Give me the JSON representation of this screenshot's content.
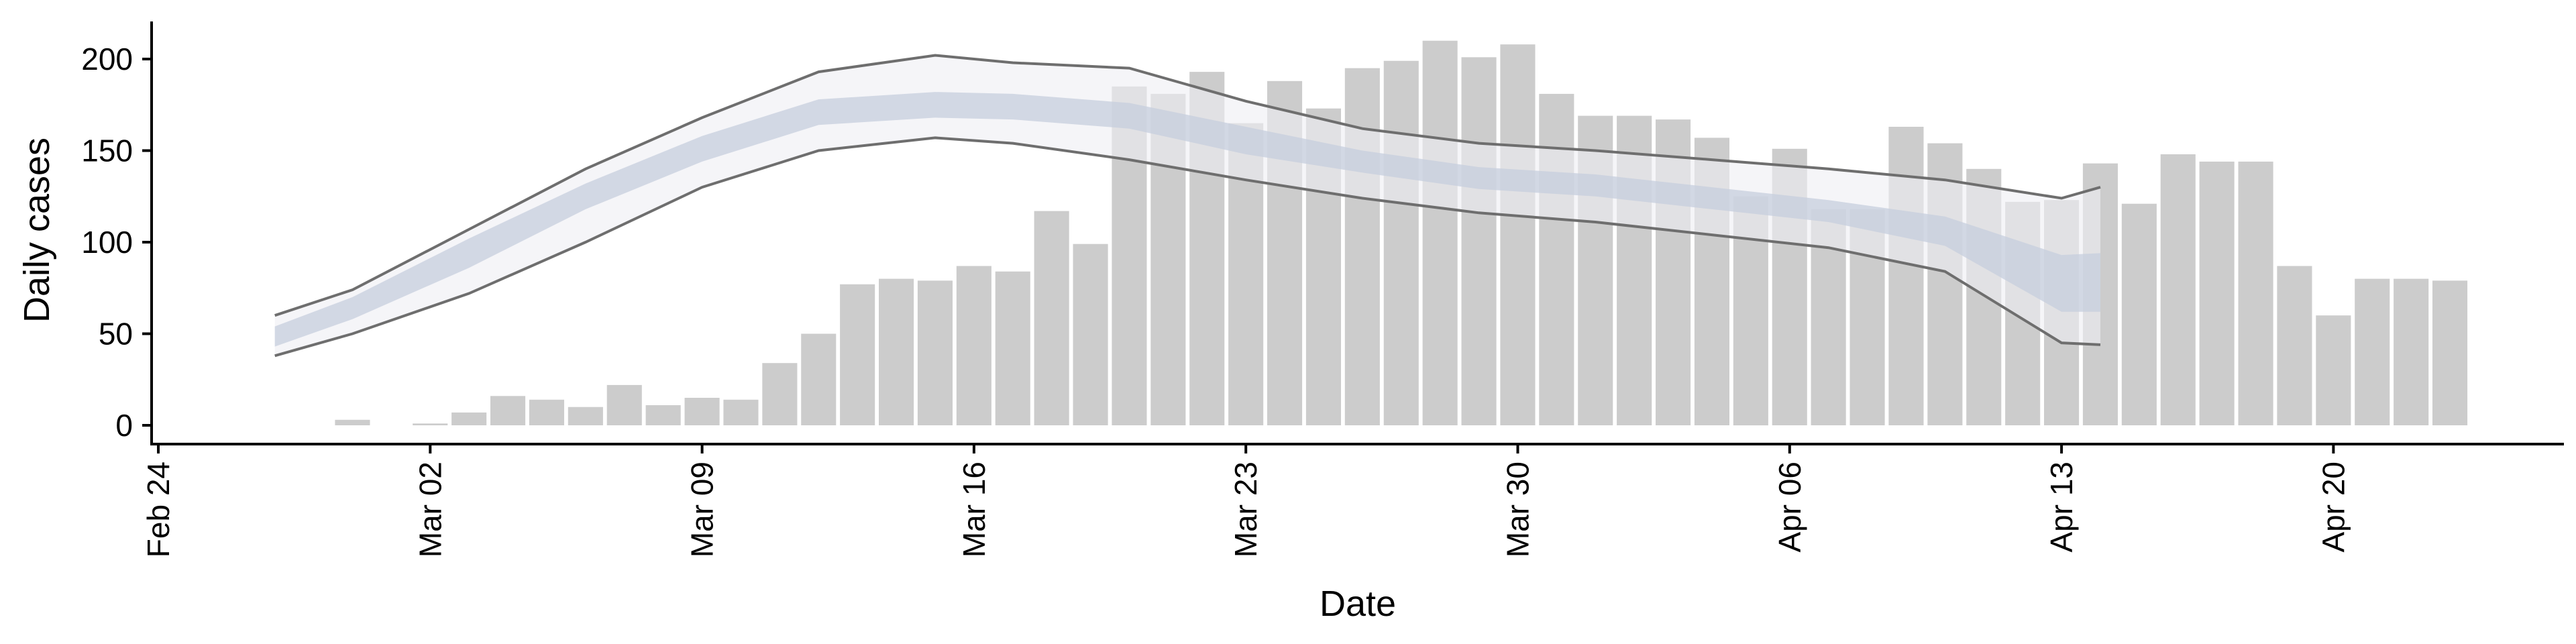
{
  "chart_data": {
    "type": "bar",
    "xlabel": "Date",
    "ylabel": "Daily cases",
    "ylim": [
      -10,
      220
    ],
    "xlim_days": [
      -0.2,
      62.3
    ],
    "x_ticks": [
      {
        "day": 0,
        "label": "Feb 24"
      },
      {
        "day": 7,
        "label": "Mar 02"
      },
      {
        "day": 14,
        "label": "Mar 09"
      },
      {
        "day": 21,
        "label": "Mar 16"
      },
      {
        "day": 28,
        "label": "Mar 23"
      },
      {
        "day": 35,
        "label": "Mar 30"
      },
      {
        "day": 42,
        "label": "Apr 06"
      },
      {
        "day": 49,
        "label": "Apr 13"
      },
      {
        "day": 56,
        "label": "Apr 20"
      }
    ],
    "y_ticks": [
      0,
      50,
      100,
      150,
      200
    ],
    "bars": {
      "start_day": 4,
      "values": [
        0,
        3,
        0,
        1,
        7,
        16,
        14,
        10,
        22,
        11,
        15,
        14,
        34,
        50,
        77,
        80,
        79,
        87,
        84,
        117,
        99,
        185,
        181,
        193,
        165,
        188,
        173,
        195,
        199,
        210,
        201,
        208,
        181,
        169,
        169,
        167,
        157,
        125,
        151,
        118,
        118,
        163,
        154,
        140,
        122,
        123,
        143,
        121,
        148,
        144,
        144,
        87,
        60,
        80,
        80,
        79
      ],
      "color": "#cccccc"
    },
    "projection": {
      "start_day": 3,
      "end_day": 50,
      "knots": [
        {
          "day": 3,
          "lower": 38,
          "band_lo": 43,
          "median": 48,
          "band_hi": 54,
          "upper": 60
        },
        {
          "day": 5,
          "lower": 50,
          "band_lo": 58,
          "median": 64,
          "band_hi": 70,
          "upper": 74
        },
        {
          "day": 8,
          "lower": 72,
          "band_lo": 86,
          "median": 94,
          "band_hi": 102,
          "upper": 107
        },
        {
          "day": 11,
          "lower": 100,
          "band_lo": 118,
          "median": 125,
          "band_hi": 132,
          "upper": 140
        },
        {
          "day": 14,
          "lower": 130,
          "band_lo": 144,
          "median": 151,
          "band_hi": 158,
          "upper": 168
        },
        {
          "day": 17,
          "lower": 150,
          "band_lo": 164,
          "median": 171,
          "band_hi": 178,
          "upper": 193
        },
        {
          "day": 20,
          "lower": 157,
          "band_lo": 168,
          "median": 175,
          "band_hi": 182,
          "upper": 202
        },
        {
          "day": 22,
          "lower": 154,
          "band_lo": 167,
          "median": 174,
          "band_hi": 181,
          "upper": 198
        },
        {
          "day": 25,
          "lower": 145,
          "band_lo": 162,
          "median": 169,
          "band_hi": 176,
          "upper": 195
        },
        {
          "day": 28,
          "lower": 134,
          "band_lo": 148,
          "median": 156,
          "band_hi": 163,
          "upper": 177
        },
        {
          "day": 31,
          "lower": 124,
          "band_lo": 138,
          "median": 144,
          "band_hi": 150,
          "upper": 162
        },
        {
          "day": 34,
          "lower": 116,
          "band_lo": 129,
          "median": 135,
          "band_hi": 141,
          "upper": 154
        },
        {
          "day": 37,
          "lower": 111,
          "band_lo": 125,
          "median": 131,
          "band_hi": 137,
          "upper": 150
        },
        {
          "day": 40,
          "lower": 104,
          "band_lo": 118,
          "median": 124,
          "band_hi": 130,
          "upper": 145
        },
        {
          "day": 43,
          "lower": 97,
          "band_lo": 111,
          "median": 117,
          "band_hi": 123,
          "upper": 140
        },
        {
          "day": 46,
          "lower": 84,
          "band_lo": 98,
          "median": 106,
          "band_hi": 114,
          "upper": 134
        },
        {
          "day": 49,
          "lower": 45,
          "band_lo": 62,
          "median": 78,
          "band_hi": 93,
          "upper": 124
        },
        {
          "day": 50,
          "lower": 44,
          "band_lo": 62,
          "median": 77,
          "band_hi": 94,
          "upper": 130
        }
      ],
      "colors": {
        "outer_fill": "#eeeef4",
        "inner_fill": "#c5cdde",
        "line": "#6e6e6e"
      }
    }
  }
}
